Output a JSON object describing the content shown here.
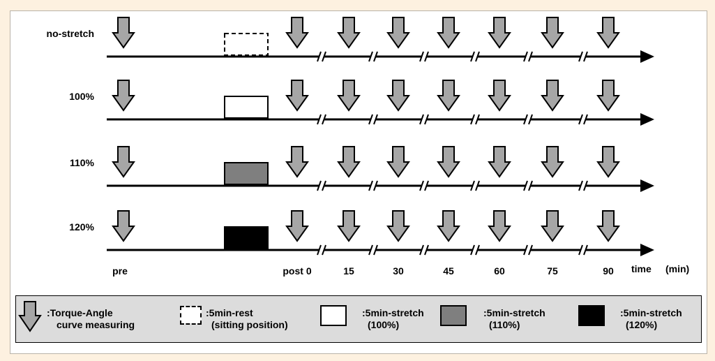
{
  "colors": {
    "page_background": "#fdf1e0",
    "arrow_fill": "#a6a6a6",
    "rest_fill": "#ffffff",
    "stretch_100_fill": "#ffffff",
    "stretch_110_fill": "#7f7f7f",
    "stretch_120_fill": "#000000",
    "legend_background": "#dcdcdc"
  },
  "conditions": [
    {
      "label": "no-stretch",
      "box_style": "dashed"
    },
    {
      "label": "100%",
      "box_style": "white"
    },
    {
      "label": "110%",
      "box_style": "gray"
    },
    {
      "label": "120%",
      "box_style": "black"
    }
  ],
  "time_points": [
    "pre",
    "post 0",
    "15",
    "30",
    "45",
    "60",
    "75",
    "90"
  ],
  "time_axis_label": "time",
  "time_axis_unit": "(min)",
  "legend": [
    {
      "icon": "down-arrow-icon",
      "line1": ":Torque-Angle",
      "line2": "curve measuring"
    },
    {
      "icon": "dashed-box-icon",
      "line1": ":5min-rest",
      "line2": "(sitting position)"
    },
    {
      "icon": "white-box-icon",
      "line1": ":5min-stretch",
      "line2": "(100%)"
    },
    {
      "icon": "gray-box-icon",
      "line1": ":5min-stretch",
      "line2": "(110%)"
    },
    {
      "icon": "black-box-icon",
      "line1": ":5min-stretch",
      "line2": "(120%)"
    }
  ]
}
